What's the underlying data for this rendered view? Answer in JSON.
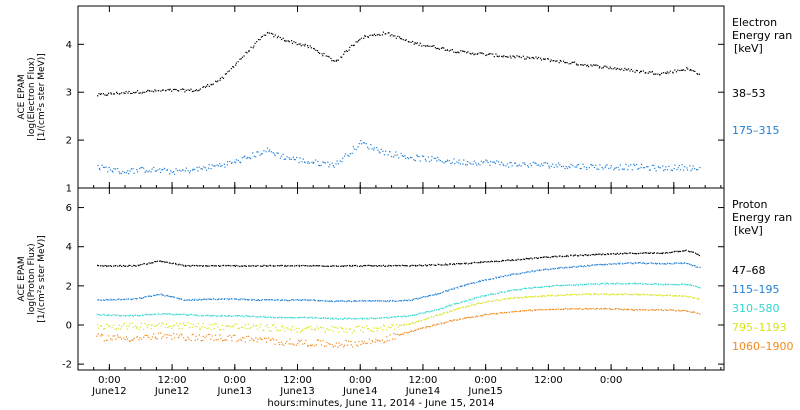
{
  "chart_data": [
    {
      "type": "scatter",
      "panel": "electron",
      "ylabel_lines": [
        "ACE EPAM",
        "log(Electron Flux)",
        "[1/(cm²s ster MeV)]"
      ],
      "ylim": [
        1,
        4.8
      ],
      "yticks": [
        "1",
        "2",
        "3",
        "4"
      ],
      "legend_title": [
        "Electron",
        "Energy ran"
      ],
      "legend_unit": "[keV]",
      "series": [
        {
          "name": "38–53",
          "color": "#000000",
          "x": [
            -0.1,
            0.1,
            0.3,
            0.5,
            0.7,
            0.9,
            1.0,
            1.25,
            1.4,
            1.6,
            1.8,
            2.0,
            2.2,
            2.4,
            2.6,
            2.8,
            3.0,
            3.2,
            3.4,
            3.6,
            3.8,
            4.0,
            4.2,
            4.4,
            4.6,
            4.7
          ],
          "values": [
            2.95,
            3.0,
            3.03,
            3.05,
            3.05,
            3.3,
            3.6,
            4.25,
            4.1,
            3.95,
            3.65,
            4.15,
            4.25,
            4.05,
            3.95,
            3.85,
            3.8,
            3.75,
            3.72,
            3.65,
            3.58,
            3.52,
            3.45,
            3.4,
            3.5,
            3.4
          ]
        },
        {
          "name": "175–315",
          "color": "#1f7fd6",
          "x": [
            -0.1,
            0.1,
            0.3,
            0.5,
            0.7,
            0.9,
            1.0,
            1.25,
            1.4,
            1.6,
            1.8,
            2.0,
            2.2,
            2.4,
            2.6,
            2.8,
            3.0,
            3.2,
            3.4,
            3.6,
            3.8,
            4.0,
            4.2,
            4.4,
            4.6,
            4.7
          ],
          "values": [
            1.45,
            1.35,
            1.4,
            1.35,
            1.4,
            1.5,
            1.55,
            1.8,
            1.65,
            1.55,
            1.5,
            1.95,
            1.75,
            1.65,
            1.6,
            1.55,
            1.55,
            1.5,
            1.5,
            1.48,
            1.46,
            1.45,
            1.45,
            1.42,
            1.45,
            1.4
          ]
        }
      ]
    },
    {
      "type": "scatter",
      "panel": "proton",
      "ylabel_lines": [
        "ACE EPAM",
        "log(Proton Flux)",
        "[1/(cm²s ster MeV)]"
      ],
      "ylim": [
        -2.3,
        7
      ],
      "yticks": [
        "-2",
        "0",
        "2",
        "4",
        "6"
      ],
      "legend_title": [
        "Proton",
        "Energy ran"
      ],
      "legend_unit": "[keV]",
      "series": [
        {
          "name": "47–68",
          "color": "#000000",
          "x": [
            -0.1,
            0.2,
            0.4,
            0.6,
            0.8,
            1.0,
            1.2,
            1.4,
            1.6,
            1.8,
            2.0,
            2.2,
            2.4,
            2.6,
            2.8,
            3.0,
            3.2,
            3.4,
            3.6,
            3.8,
            4.0,
            4.2,
            4.4,
            4.6,
            4.7
          ],
          "values": [
            3.05,
            3.05,
            3.3,
            3.05,
            3.05,
            3.05,
            3.05,
            3.05,
            3.05,
            3.05,
            3.05,
            3.05,
            3.05,
            3.1,
            3.15,
            3.25,
            3.35,
            3.45,
            3.55,
            3.6,
            3.65,
            3.7,
            3.7,
            3.85,
            3.6
          ]
        },
        {
          "name": "115–195",
          "color": "#1f7fd6",
          "x": [
            -0.1,
            0.2,
            0.4,
            0.6,
            0.8,
            1.0,
            1.2,
            1.4,
            1.6,
            1.8,
            2.0,
            2.2,
            2.4,
            2.6,
            2.8,
            3.0,
            3.2,
            3.4,
            3.6,
            3.8,
            4.0,
            4.2,
            4.4,
            4.6,
            4.7
          ],
          "values": [
            1.3,
            1.35,
            1.6,
            1.3,
            1.35,
            1.35,
            1.3,
            1.3,
            1.3,
            1.25,
            1.25,
            1.25,
            1.3,
            1.6,
            2.0,
            2.35,
            2.6,
            2.8,
            2.95,
            3.05,
            3.15,
            3.2,
            3.15,
            3.2,
            2.95
          ]
        },
        {
          "name": "310–580",
          "color": "#2fd8d0",
          "x": [
            -0.1,
            0.2,
            0.4,
            0.6,
            0.8,
            1.0,
            1.2,
            1.4,
            1.6,
            1.8,
            2.0,
            2.2,
            2.4,
            2.6,
            2.8,
            3.0,
            3.2,
            3.4,
            3.6,
            3.8,
            4.0,
            4.2,
            4.4,
            4.6,
            4.7
          ],
          "values": [
            0.55,
            0.5,
            0.6,
            0.55,
            0.5,
            0.5,
            0.45,
            0.4,
            0.4,
            0.35,
            0.35,
            0.4,
            0.5,
            0.8,
            1.2,
            1.55,
            1.8,
            1.95,
            2.05,
            2.1,
            2.15,
            2.15,
            2.1,
            2.1,
            1.95
          ]
        },
        {
          "name": "795–1193",
          "color": "#d8e41a",
          "x": [
            -0.1,
            0.2,
            0.4,
            0.6,
            0.8,
            1.0,
            1.2,
            1.4,
            1.6,
            1.8,
            2.0,
            2.2,
            2.4,
            2.6,
            2.8,
            3.0,
            3.2,
            3.4,
            3.6,
            3.8,
            4.0,
            4.2,
            4.4,
            4.6,
            4.7
          ],
          "values": [
            0.0,
            -0.05,
            0.05,
            0.0,
            -0.05,
            -0.05,
            -0.1,
            -0.15,
            -0.2,
            -0.2,
            -0.2,
            -0.1,
            0.1,
            0.5,
            0.9,
            1.2,
            1.4,
            1.5,
            1.55,
            1.6,
            1.6,
            1.6,
            1.55,
            1.5,
            1.35
          ]
        },
        {
          "name": "1060–1900",
          "color": "#f08a1c",
          "x": [
            -0.1,
            0.2,
            0.4,
            0.6,
            0.8,
            1.0,
            1.2,
            1.4,
            1.6,
            1.8,
            2.0,
            2.2,
            2.4,
            2.6,
            2.8,
            3.0,
            3.2,
            3.4,
            3.6,
            3.8,
            4.0,
            4.2,
            4.4,
            4.6,
            4.7
          ],
          "values": [
            -0.6,
            -0.65,
            -0.55,
            -0.6,
            -0.6,
            -0.65,
            -0.75,
            -0.85,
            -0.9,
            -0.95,
            -0.9,
            -0.7,
            -0.3,
            0.05,
            0.35,
            0.55,
            0.7,
            0.8,
            0.85,
            0.85,
            0.85,
            0.8,
            0.8,
            0.75,
            0.6
          ]
        }
      ]
    }
  ],
  "x_axis": {
    "range_days": [
      -0.25,
      4.9
    ],
    "tick_values": [
      0,
      0.5,
      1,
      1.5,
      2,
      2.5,
      3,
      3.5,
      4,
      4.5
    ],
    "tick_time_labels": [
      "0:00",
      "12:00",
      "0:00",
      "12:00",
      "0:00",
      "12:00",
      "0:00",
      "12:00",
      "0:00"
    ],
    "tick_time_values": [
      0,
      0.5,
      1,
      1.5,
      2,
      2.5,
      3,
      3.5,
      4
    ],
    "tick_date_labels": [
      "June12",
      "June12",
      "June13",
      "June13",
      "June14",
      "June14",
      "June15"
    ],
    "tick_date_values": [
      0,
      0.5,
      1,
      1.5,
      2,
      2.5,
      3
    ],
    "xlabel": "hours:minutes, June 11, 2014 - June 15, 2014"
  }
}
